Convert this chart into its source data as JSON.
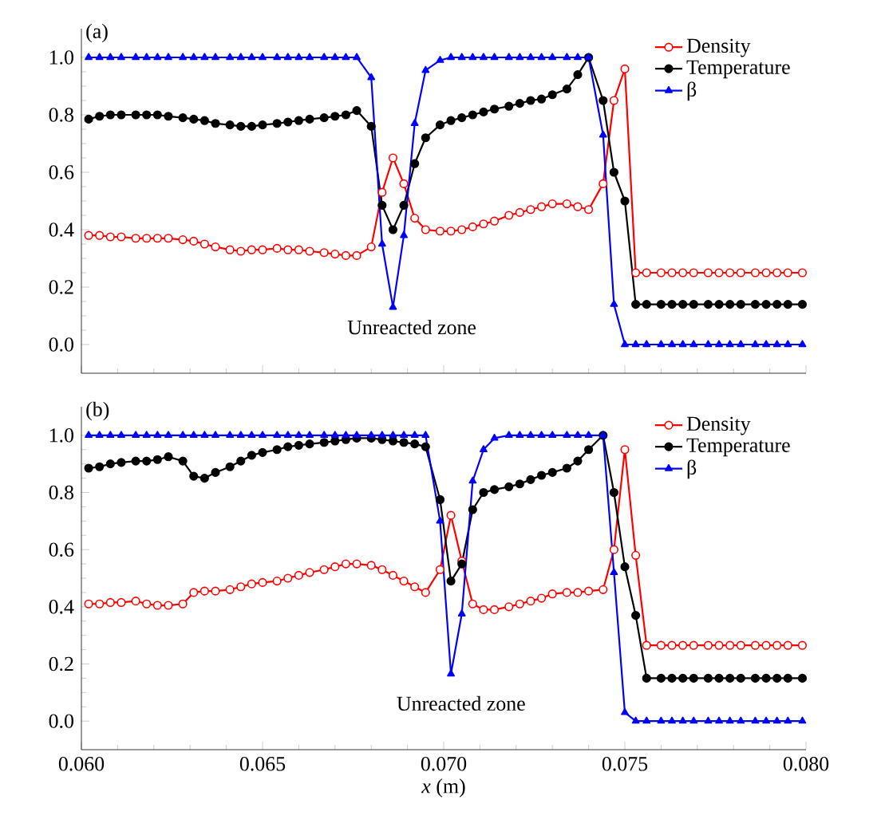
{
  "chart_data": [
    {
      "type": "line",
      "annotations": [
        "(a)",
        "Unreacted zone"
      ],
      "x": [
        0.0602,
        0.0605,
        0.0608,
        0.0611,
        0.0615,
        0.0618,
        0.0621,
        0.0624,
        0.0628,
        0.0631,
        0.0634,
        0.0637,
        0.0641,
        0.0644,
        0.0647,
        0.065,
        0.0654,
        0.0657,
        0.066,
        0.0663,
        0.0667,
        0.067,
        0.0673,
        0.0676,
        0.068,
        0.0683,
        0.0686,
        0.0689,
        0.0692,
        0.0695,
        0.0699,
        0.0702,
        0.0705,
        0.0708,
        0.0711,
        0.0714,
        0.0718,
        0.0721,
        0.0724,
        0.0727,
        0.073,
        0.0734,
        0.0737,
        0.074,
        0.0744,
        0.0747,
        0.075,
        0.0753,
        0.0756,
        0.076,
        0.0763,
        0.0766,
        0.0769,
        0.0773,
        0.0776,
        0.0779,
        0.0782,
        0.0786,
        0.0789,
        0.0792,
        0.0795,
        0.0799
      ],
      "series": [
        {
          "name": "Density",
          "color": "#ff0000",
          "marker": "circle",
          "values": [
            0.38,
            0.38,
            0.375,
            0.375,
            0.37,
            0.37,
            0.37,
            0.37,
            0.365,
            0.36,
            0.35,
            0.34,
            0.33,
            0.325,
            0.33,
            0.33,
            0.335,
            0.33,
            0.33,
            0.325,
            0.32,
            0.315,
            0.31,
            0.31,
            0.34,
            0.53,
            0.65,
            0.56,
            0.44,
            0.4,
            0.395,
            0.395,
            0.4,
            0.41,
            0.42,
            0.43,
            0.45,
            0.46,
            0.47,
            0.48,
            0.49,
            0.49,
            0.48,
            0.47,
            0.56,
            0.85,
            0.96,
            0.25,
            0.25,
            0.25,
            0.25,
            0.25,
            0.25,
            0.25,
            0.25,
            0.25,
            0.25,
            0.25,
            0.25,
            0.25,
            0.25,
            0.25
          ]
        },
        {
          "name": "Temperature",
          "color": "#000000",
          "marker": "circle",
          "values": [
            0.785,
            0.795,
            0.8,
            0.8,
            0.8,
            0.8,
            0.8,
            0.795,
            0.79,
            0.785,
            0.78,
            0.77,
            0.765,
            0.76,
            0.76,
            0.765,
            0.77,
            0.775,
            0.78,
            0.785,
            0.79,
            0.795,
            0.8,
            0.815,
            0.76,
            0.485,
            0.4,
            0.485,
            0.63,
            0.72,
            0.765,
            0.78,
            0.79,
            0.8,
            0.81,
            0.82,
            0.83,
            0.84,
            0.85,
            0.855,
            0.87,
            0.89,
            0.94,
            1.0,
            0.85,
            0.6,
            0.5,
            0.14,
            0.14,
            0.14,
            0.14,
            0.14,
            0.14,
            0.14,
            0.14,
            0.14,
            0.14,
            0.14,
            0.14,
            0.14,
            0.14,
            0.14
          ]
        },
        {
          "name": "β",
          "color": "#0000ff",
          "marker": "triangle",
          "values": [
            1.0,
            1.0,
            1.0,
            1.0,
            1.0,
            1.0,
            1.0,
            1.0,
            1.0,
            1.0,
            1.0,
            1.0,
            1.0,
            1.0,
            1.0,
            1.0,
            1.0,
            1.0,
            1.0,
            1.0,
            1.0,
            1.0,
            1.0,
            1.0,
            0.93,
            0.35,
            0.13,
            0.38,
            0.77,
            0.955,
            0.99,
            1.0,
            1.0,
            1.0,
            1.0,
            1.0,
            1.0,
            1.0,
            1.0,
            1.0,
            1.0,
            1.0,
            1.0,
            1.0,
            0.73,
            0.14,
            0.0,
            0.0,
            0.0,
            0.0,
            0.0,
            0.0,
            0.0,
            0.0,
            0.0,
            0.0,
            0.0,
            0.0,
            0.0,
            0.0,
            0.0,
            0.0
          ]
        }
      ],
      "xlim": [
        0.06,
        0.08
      ],
      "xticks": [
        0.06,
        0.065,
        0.07,
        0.075,
        0.08
      ],
      "ylim": [
        -0.1,
        1.1
      ],
      "yticks": [
        {
          "value": 0,
          "label": "0.0"
        },
        {
          "value": 0.2,
          "label": "0.2"
        },
        {
          "value": 0.4,
          "label": "0.4"
        },
        {
          "value": 0.6,
          "label": "0.6"
        },
        {
          "value": 0.8,
          "label": "0.8"
        },
        {
          "value": 1.0,
          "label": "1.0"
        }
      ],
      "tick_labels": "y",
      "legend": "top right",
      "grid": false,
      "line_style": "solid"
    },
    {
      "type": "line",
      "xlabel": "*x* (m)",
      "annotations": [
        "(b)",
        "Unreacted zone"
      ],
      "x": [
        0.0602,
        0.0605,
        0.0608,
        0.0611,
        0.0615,
        0.0618,
        0.0621,
        0.0624,
        0.0628,
        0.0631,
        0.0634,
        0.0637,
        0.0641,
        0.0644,
        0.0647,
        0.065,
        0.0654,
        0.0657,
        0.066,
        0.0663,
        0.0667,
        0.067,
        0.0673,
        0.0676,
        0.068,
        0.0683,
        0.0686,
        0.0689,
        0.0692,
        0.0695,
        0.0699,
        0.0702,
        0.0705,
        0.0708,
        0.0711,
        0.0714,
        0.0718,
        0.0721,
        0.0724,
        0.0727,
        0.073,
        0.0734,
        0.0737,
        0.074,
        0.0744,
        0.0747,
        0.075,
        0.0753,
        0.0756,
        0.076,
        0.0763,
        0.0766,
        0.0769,
        0.0773,
        0.0776,
        0.0779,
        0.0782,
        0.0786,
        0.0789,
        0.0792,
        0.0795,
        0.0799
      ],
      "series": [
        {
          "name": "Density",
          "color": "#ff0000",
          "marker": "circle",
          "values": [
            0.41,
            0.41,
            0.415,
            0.415,
            0.42,
            0.41,
            0.405,
            0.405,
            0.41,
            0.45,
            0.455,
            0.455,
            0.46,
            0.47,
            0.48,
            0.485,
            0.49,
            0.5,
            0.51,
            0.52,
            0.53,
            0.54,
            0.55,
            0.55,
            0.545,
            0.53,
            0.51,
            0.49,
            0.47,
            0.45,
            0.53,
            0.72,
            0.56,
            0.41,
            0.39,
            0.39,
            0.4,
            0.41,
            0.42,
            0.43,
            0.445,
            0.45,
            0.45,
            0.455,
            0.46,
            0.6,
            0.95,
            0.58,
            0.265,
            0.265,
            0.265,
            0.265,
            0.265,
            0.265,
            0.265,
            0.265,
            0.265,
            0.265,
            0.265,
            0.265,
            0.265,
            0.265
          ]
        },
        {
          "name": "Temperature",
          "color": "#000000",
          "marker": "circle",
          "values": [
            0.885,
            0.89,
            0.9,
            0.905,
            0.91,
            0.91,
            0.915,
            0.925,
            0.91,
            0.857,
            0.85,
            0.87,
            0.89,
            0.91,
            0.93,
            0.94,
            0.95,
            0.96,
            0.965,
            0.97,
            0.975,
            0.98,
            0.985,
            0.99,
            0.99,
            0.985,
            0.98,
            0.975,
            0.97,
            0.96,
            0.775,
            0.49,
            0.55,
            0.74,
            0.8,
            0.81,
            0.82,
            0.83,
            0.845,
            0.86,
            0.87,
            0.885,
            0.91,
            0.95,
            1.0,
            0.8,
            0.54,
            0.37,
            0.15,
            0.15,
            0.15,
            0.15,
            0.15,
            0.15,
            0.15,
            0.15,
            0.15,
            0.15,
            0.15,
            0.15,
            0.15,
            0.15
          ]
        },
        {
          "name": "β",
          "color": "#0000ff",
          "marker": "triangle",
          "values": [
            1.0,
            1.0,
            1.0,
            1.0,
            1.0,
            1.0,
            1.0,
            1.0,
            1.0,
            1.0,
            1.0,
            1.0,
            1.0,
            1.0,
            1.0,
            1.0,
            1.0,
            1.0,
            1.0,
            1.0,
            1.0,
            1.0,
            1.0,
            1.0,
            1.0,
            1.0,
            1.0,
            1.0,
            1.0,
            1.0,
            0.7,
            0.165,
            0.375,
            0.84,
            0.95,
            0.99,
            1.0,
            1.0,
            1.0,
            1.0,
            1.0,
            1.0,
            1.0,
            1.0,
            1.0,
            0.52,
            0.03,
            0.0,
            0.0,
            0.0,
            0.0,
            0.0,
            0.0,
            0.0,
            0.0,
            0.0,
            0.0,
            0.0,
            0.0,
            0.0,
            0.0,
            0.0
          ]
        }
      ],
      "xlim": [
        0.06,
        0.08
      ],
      "xticks": [
        {
          "value": 0.06,
          "label": "0.060"
        },
        {
          "value": 0.065,
          "label": "0.065"
        },
        {
          "value": 0.07,
          "label": "0.070"
        },
        {
          "value": 0.075,
          "label": "0.075"
        },
        {
          "value": 0.08,
          "label": "0.080"
        }
      ],
      "ylim": [
        -0.1,
        1.1
      ],
      "yticks": [
        {
          "value": 0,
          "label": "0.0"
        },
        {
          "value": 0.2,
          "label": "0.2"
        },
        {
          "value": 0.4,
          "label": "0.4"
        },
        {
          "value": 0.6,
          "label": "0.6"
        },
        {
          "value": 0.8,
          "label": "0.8"
        },
        {
          "value": 1.0,
          "label": "1.0"
        }
      ],
      "legend": "top right",
      "grid": false,
      "line_style": "solid"
    }
  ]
}
